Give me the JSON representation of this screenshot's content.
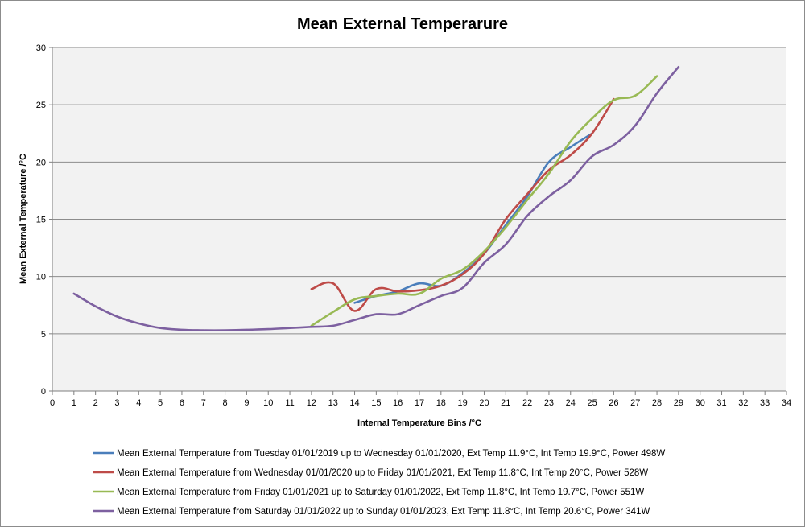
{
  "chart_data": {
    "type": "line",
    "title": "Mean External Temperarure",
    "xlabel": "Internal Temperature Bins /°C",
    "ylabel": "Mean External Temperature /°C",
    "xlim": [
      0,
      34
    ],
    "ylim": [
      0,
      30
    ],
    "xticks": [
      0,
      1,
      2,
      3,
      4,
      5,
      6,
      7,
      8,
      9,
      10,
      11,
      12,
      13,
      14,
      15,
      16,
      17,
      18,
      19,
      20,
      21,
      22,
      23,
      24,
      25,
      26,
      27,
      28,
      29,
      30,
      31,
      32,
      33,
      34
    ],
    "yticks": [
      0,
      5,
      10,
      15,
      20,
      25,
      30
    ],
    "grid": "horizontal",
    "legend_position": "bottom",
    "series": [
      {
        "name": "Mean External Temperature from Tuesday 01/01/2019 up to Wednesday 01/01/2020, Ext Temp 11.9°C, Int Temp 19.9°C, Power 498W",
        "color": "#4a7ebb",
        "x": [
          14,
          15,
          16,
          17,
          18,
          19,
          20,
          21,
          22,
          23,
          24,
          25
        ],
        "y": [
          7.7,
          8.3,
          8.7,
          9.4,
          9.2,
          10.3,
          12.0,
          14.5,
          17.0,
          20.0,
          21.3,
          22.5
        ]
      },
      {
        "name": "Mean External Temperature from Wednesday 01/01/2020 up to Friday 01/01/2021, Ext Temp 11.8°C, Int Temp 20°C, Power 528W",
        "color": "#be4b48",
        "x": [
          12,
          13,
          14,
          15,
          16,
          17,
          18,
          19,
          20,
          21,
          22,
          23,
          24,
          25,
          26
        ],
        "y": [
          8.9,
          9.4,
          7.0,
          8.9,
          8.7,
          8.8,
          9.2,
          10.2,
          12.0,
          15.0,
          17.2,
          19.3,
          20.6,
          22.5,
          25.5
        ]
      },
      {
        "name": "Mean External Temperature from Friday 01/01/2021 up to Saturday 01/01/2022, Ext Temp 11.8°C, Int Temp 19.7°C, Power 551W",
        "color": "#98b954",
        "x": [
          12,
          13,
          14,
          15,
          16,
          17,
          18,
          19,
          20,
          21,
          22,
          23,
          24,
          25,
          26,
          27,
          28
        ],
        "y": [
          5.7,
          6.9,
          8.0,
          8.3,
          8.5,
          8.5,
          9.8,
          10.6,
          12.2,
          14.3,
          16.7,
          19.0,
          21.8,
          23.8,
          25.4,
          25.8,
          27.5
        ]
      },
      {
        "name": "Mean External Temperature from Saturday 01/01/2022 up to Sunday 01/01/2023, Ext Temp 11.8°C, Int Temp 20.6°C, Power 341W",
        "color": "#7d60a0",
        "x": [
          1,
          2,
          3,
          4,
          5,
          6,
          7,
          8,
          9,
          10,
          11,
          12,
          13,
          14,
          15,
          16,
          17,
          18,
          19,
          20,
          21,
          22,
          23,
          24,
          25,
          26,
          27,
          28,
          29
        ],
        "y": [
          8.5,
          7.4,
          6.5,
          5.9,
          5.5,
          5.35,
          5.3,
          5.3,
          5.35,
          5.4,
          5.5,
          5.6,
          5.7,
          6.2,
          6.7,
          6.7,
          7.5,
          8.3,
          9.0,
          11.2,
          12.8,
          15.3,
          17.0,
          18.4,
          20.5,
          21.5,
          23.2,
          26.0,
          28.3
        ]
      }
    ]
  }
}
